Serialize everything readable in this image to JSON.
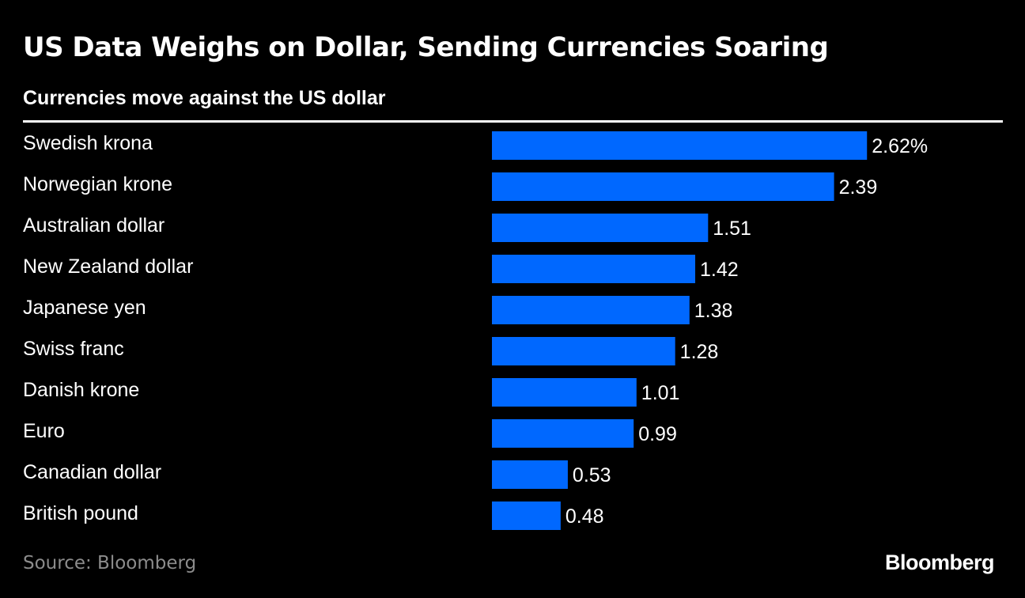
{
  "chart_data": {
    "type": "bar",
    "orientation": "horizontal",
    "title": "US Data Weighs on Dollar, Sending Currencies Soaring",
    "subtitle": "Currencies move against the US dollar",
    "categories": [
      "Swedish krona",
      "Norwegian krone",
      "Australian dollar",
      "New Zealand dollar",
      "Japanese yen",
      "Swiss franc",
      "Danish krone",
      "Euro",
      "Canadian dollar",
      "British pound"
    ],
    "values": [
      2.62,
      2.39,
      1.51,
      1.42,
      1.38,
      1.28,
      1.01,
      0.99,
      0.53,
      0.48
    ],
    "value_labels": [
      "2.62%",
      "2.39",
      "1.51",
      "1.42",
      "1.38",
      "1.28",
      "1.01",
      "0.99",
      "0.53",
      "0.48"
    ],
    "xlim": [
      0,
      3
    ],
    "unit": "%",
    "bar_color": "#0068ff"
  },
  "footer": {
    "source": "Source: Bloomberg",
    "brand": "Bloomberg"
  }
}
